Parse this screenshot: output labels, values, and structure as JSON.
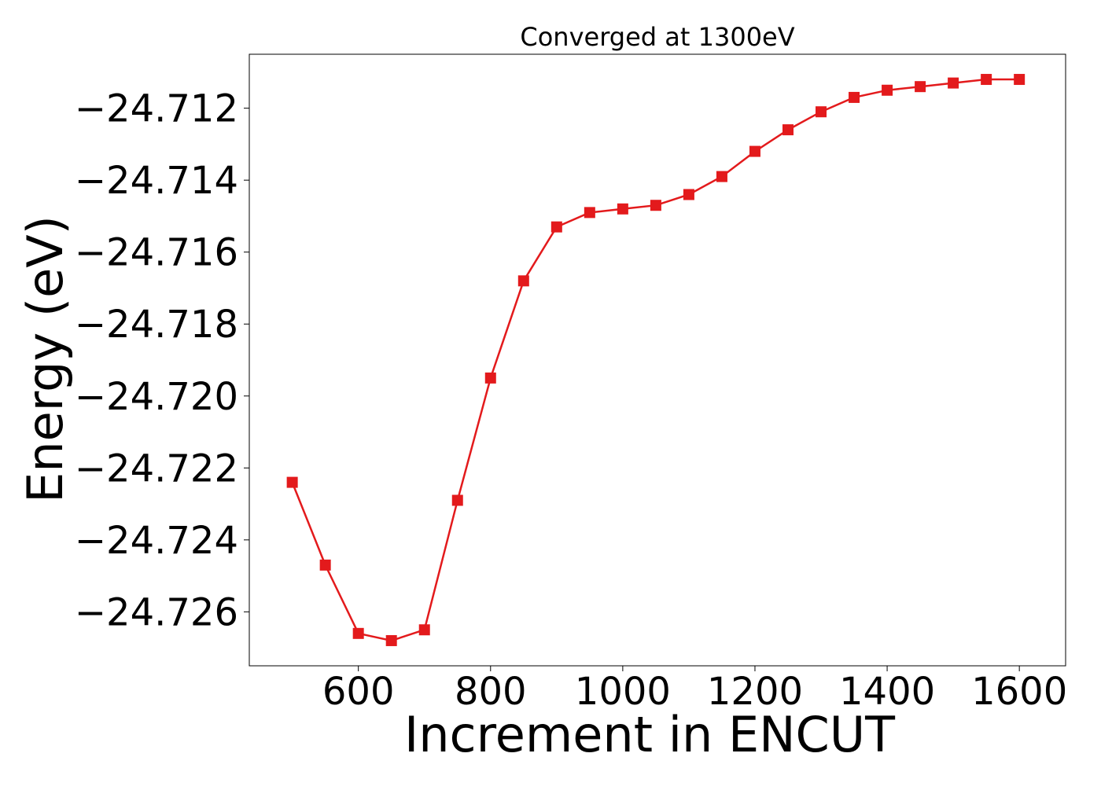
{
  "chart_data": {
    "type": "line",
    "title": "Converged at 1300eV",
    "xlabel": "Increment in ENCUT",
    "ylabel": "Energy (eV)",
    "xlim": [
      435,
      1670
    ],
    "ylim": [
      -24.7275,
      -24.7105
    ],
    "x_ticks": [
      600,
      800,
      1000,
      1200,
      1400,
      1600
    ],
    "x_tick_labels": [
      "600",
      "800",
      "1000",
      "1200",
      "1400",
      "1600"
    ],
    "y_ticks": [
      -24.712,
      -24.714,
      -24.716,
      -24.718,
      -24.72,
      -24.722,
      -24.724,
      -24.726
    ],
    "y_tick_labels": [
      "−24.712",
      "−24.714",
      "−24.716",
      "−24.718",
      "−24.720",
      "−24.722",
      "−24.724",
      "−24.726"
    ],
    "grid": false,
    "series": [
      {
        "color": "#e31a1c",
        "marker": "square",
        "x": [
          500,
          550,
          600,
          650,
          700,
          750,
          800,
          850,
          900,
          950,
          1000,
          1050,
          1100,
          1150,
          1200,
          1250,
          1300,
          1350,
          1400,
          1450,
          1500,
          1550,
          1600
        ],
        "y": [
          -24.7224,
          -24.7247,
          -24.7266,
          -24.7268,
          -24.7265,
          -24.7229,
          -24.7195,
          -24.7168,
          -24.7153,
          -24.7149,
          -24.7148,
          -24.7147,
          -24.7144,
          -24.7139,
          -24.7132,
          -24.7126,
          -24.7121,
          -24.7117,
          -24.7115,
          -24.7114,
          -24.7113,
          -24.7112,
          -24.7112
        ]
      }
    ]
  }
}
